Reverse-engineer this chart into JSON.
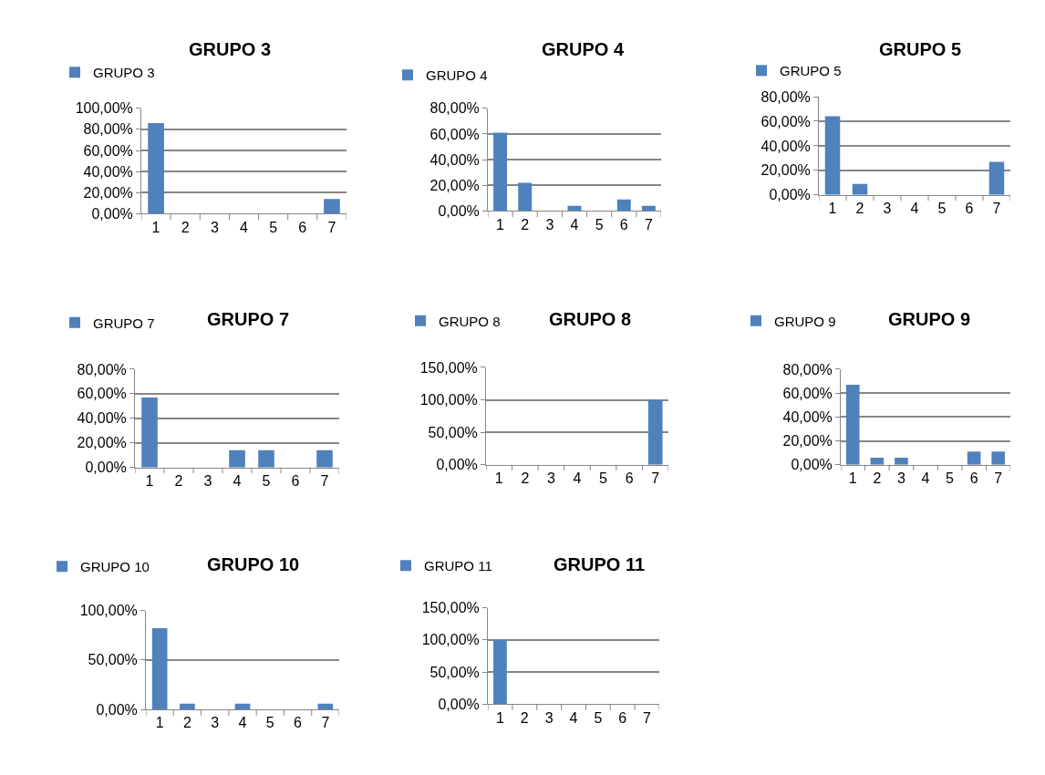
{
  "chart_data": [
    {
      "type": "bar",
      "title": "GRUPO 3",
      "categories": [
        "1",
        "2",
        "3",
        "4",
        "5",
        "6",
        "7"
      ],
      "series": [
        {
          "name": "GRUPO 3",
          "color": "#4f81bd",
          "values": [
            86,
            0,
            0,
            0,
            0,
            0,
            14
          ]
        }
      ],
      "ylim": [
        0,
        100
      ],
      "yticks": [
        {
          "value": 0,
          "label": "0,00%"
        },
        {
          "value": 20,
          "label": "20,00%"
        },
        {
          "value": 40,
          "label": "40,00%"
        },
        {
          "value": 60,
          "label": "60,00%"
        },
        {
          "value": 80,
          "label": "80,00%"
        },
        {
          "value": 100,
          "label": "100,00%"
        }
      ],
      "grid": "y",
      "legend": "top left"
    },
    {
      "type": "bar",
      "title": "GRUPO 4",
      "categories": [
        "1",
        "2",
        "3",
        "4",
        "5",
        "6",
        "7"
      ],
      "series": [
        {
          "name": "GRUPO 4",
          "color": "#4f81bd",
          "values": [
            61,
            22,
            0,
            4,
            0,
            9,
            4
          ]
        }
      ],
      "ylim": [
        0,
        80
      ],
      "yticks": [
        {
          "value": 0,
          "label": "0,00%"
        },
        {
          "value": 20,
          "label": "20,00%"
        },
        {
          "value": 40,
          "label": "40,00%"
        },
        {
          "value": 60,
          "label": "60,00%"
        },
        {
          "value": 80,
          "label": "80,00%"
        }
      ],
      "grid": "y",
      "legend": "top left"
    },
    {
      "type": "bar",
      "title": "GRUPO 5",
      "categories": [
        "1",
        "2",
        "3",
        "4",
        "5",
        "6",
        "7"
      ],
      "series": [
        {
          "name": "GRUPO 5",
          "color": "#4f81bd",
          "values": [
            64,
            9,
            0,
            0,
            0,
            0,
            27
          ]
        }
      ],
      "ylim": [
        0,
        80
      ],
      "yticks": [
        {
          "value": 0,
          "label": "0,00%"
        },
        {
          "value": 20,
          "label": "20,00%"
        },
        {
          "value": 40,
          "label": "40,00%"
        },
        {
          "value": 60,
          "label": "60,00%"
        },
        {
          "value": 80,
          "label": "80,00%"
        }
      ],
      "grid": "y",
      "legend": "top left"
    },
    {
      "type": "bar",
      "title": "GRUPO 7",
      "categories": [
        "1",
        "2",
        "3",
        "4",
        "5",
        "6",
        "7"
      ],
      "series": [
        {
          "name": "GRUPO 7",
          "color": "#4f81bd",
          "values": [
            57,
            0,
            0,
            14,
            14,
            0,
            14
          ]
        }
      ],
      "ylim": [
        0,
        80
      ],
      "yticks": [
        {
          "value": 0,
          "label": "0,00%"
        },
        {
          "value": 20,
          "label": "20,00%"
        },
        {
          "value": 40,
          "label": "40,00%"
        },
        {
          "value": 60,
          "label": "60,00%"
        },
        {
          "value": 80,
          "label": "80,00%"
        }
      ],
      "grid": "y",
      "legend": "top left"
    },
    {
      "type": "bar",
      "title": "GRUPO 8",
      "categories": [
        "1",
        "2",
        "3",
        "4",
        "5",
        "6",
        "7"
      ],
      "series": [
        {
          "name": "GRUPO 8",
          "color": "#4f81bd",
          "values": [
            0,
            0,
            0,
            0,
            0,
            0,
            100
          ]
        }
      ],
      "ylim": [
        0,
        150
      ],
      "yticks": [
        {
          "value": 0,
          "label": "0,00%"
        },
        {
          "value": 50,
          "label": "50,00%"
        },
        {
          "value": 100,
          "label": "100,00%"
        },
        {
          "value": 150,
          "label": "150,00%"
        }
      ],
      "grid": "y",
      "legend": "top left"
    },
    {
      "type": "bar",
      "title": "GRUPO 9",
      "categories": [
        "1",
        "2",
        "3",
        "4",
        "5",
        "6",
        "7"
      ],
      "series": [
        {
          "name": "GRUPO 9",
          "color": "#4f81bd",
          "values": [
            67,
            6,
            6,
            0,
            0,
            11,
            11
          ]
        }
      ],
      "ylim": [
        0,
        80
      ],
      "yticks": [
        {
          "value": 0,
          "label": "0,00%"
        },
        {
          "value": 20,
          "label": "20,00%"
        },
        {
          "value": 40,
          "label": "40,00%"
        },
        {
          "value": 60,
          "label": "60,00%"
        },
        {
          "value": 80,
          "label": "80,00%"
        }
      ],
      "grid": "y",
      "legend": "top left"
    },
    {
      "type": "bar",
      "title": "GRUPO 10",
      "categories": [
        "1",
        "2",
        "3",
        "4",
        "5",
        "6",
        "7"
      ],
      "series": [
        {
          "name": "GRUPO 10",
          "color": "#4f81bd",
          "values": [
            82,
            6,
            0,
            6,
            0,
            0,
            6
          ]
        }
      ],
      "ylim": [
        0,
        100
      ],
      "yticks": [
        {
          "value": 0,
          "label": "0,00%"
        },
        {
          "value": 50,
          "label": "50,00%"
        },
        {
          "value": 100,
          "label": "100,00%"
        }
      ],
      "grid": "y",
      "legend": "top left"
    },
    {
      "type": "bar",
      "title": "GRUPO 11",
      "categories": [
        "1",
        "2",
        "3",
        "4",
        "5",
        "6",
        "7"
      ],
      "series": [
        {
          "name": "GRUPO 11",
          "color": "#4f81bd",
          "values": [
            100,
            0,
            0,
            0,
            0,
            0,
            0
          ]
        }
      ],
      "ylim": [
        0,
        150
      ],
      "yticks": [
        {
          "value": 0,
          "label": "0,00%"
        },
        {
          "value": 50,
          "label": "50,00%"
        },
        {
          "value": 100,
          "label": "100,00%"
        },
        {
          "value": 150,
          "label": "150,00%"
        }
      ],
      "grid": "y",
      "legend": "top left"
    }
  ]
}
